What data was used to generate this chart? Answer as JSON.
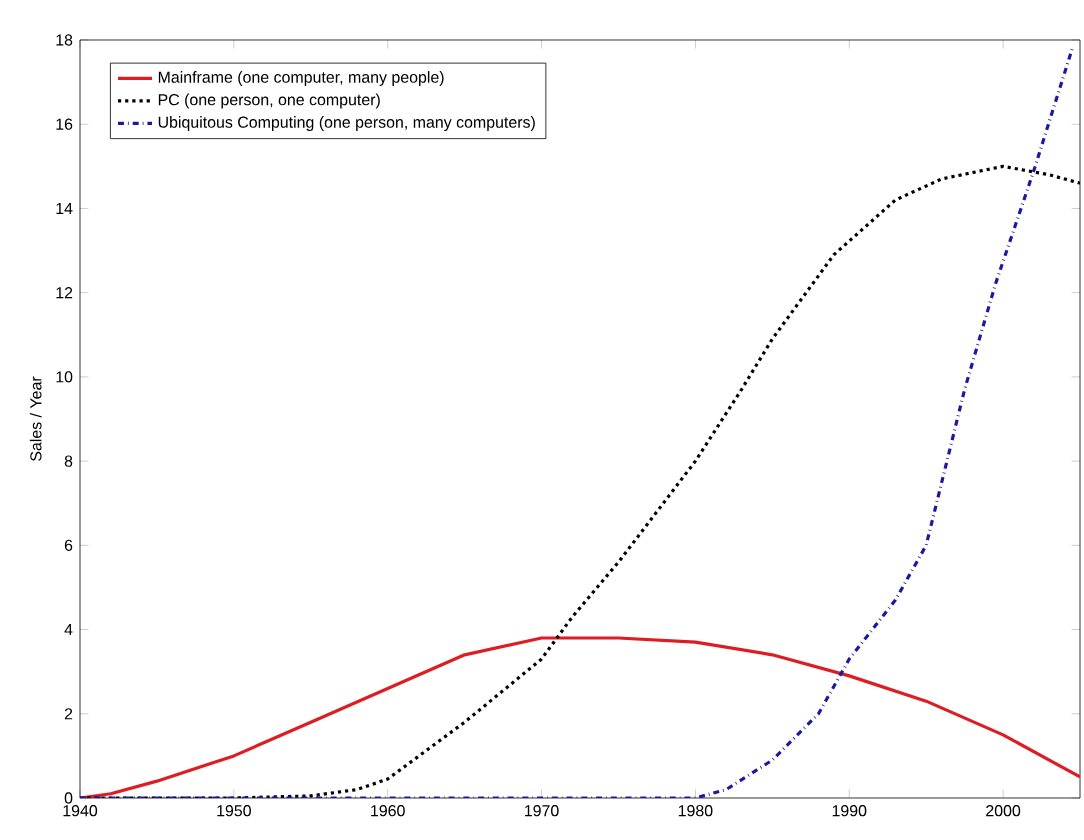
{
  "chart_data": {
    "type": "line",
    "ylabel": "Sales / Year",
    "xlim": [
      1940,
      2005
    ],
    "ylim": [
      0,
      18
    ],
    "xticks": [
      1940,
      1950,
      1960,
      1970,
      1980,
      1990,
      2000
    ],
    "yticks": [
      0,
      2,
      4,
      6,
      8,
      10,
      12,
      14,
      16,
      18
    ],
    "legend": "top left",
    "grid": false,
    "series": [
      {
        "name": "Mainframe (one computer, many people)",
        "color": "#dd1c24",
        "line_style": "solid",
        "x": [
          1940,
          1942,
          1945,
          1950,
          1955,
          1960,
          1965,
          1970,
          1975,
          1980,
          1985,
          1990,
          1995,
          2000,
          2005
        ],
        "values": [
          0,
          0.1,
          0.4,
          1,
          1.8,
          2.6,
          3.4,
          3.8,
          3.8,
          3.7,
          3.4,
          2.9,
          2.3,
          1.5,
          0.5
        ]
      },
      {
        "name": "PC (one person, one computer)",
        "color": "#000000",
        "line_style": "dotted",
        "x": [
          1940,
          1950,
          1955,
          1958,
          1960,
          1965,
          1970,
          1972,
          1975,
          1980,
          1983,
          1985,
          1989,
          1993,
          1996,
          2000,
          2003,
          2005
        ],
        "values": [
          0,
          0,
          0.05,
          0.2,
          0.45,
          1.8,
          3.3,
          4.3,
          5.6,
          8,
          9.7,
          10.9,
          12.9,
          14.2,
          14.7,
          15,
          14.8,
          14.6
        ]
      },
      {
        "name": "Ubiquitous Computing (one person, many computers)",
        "color": "#1a1aa0",
        "line_style": "dashdot",
        "x": [
          1940,
          1950,
          1960,
          1970,
          1980,
          1982,
          1985,
          1988,
          1990,
          1993,
          1995,
          1997.5,
          1999.5,
          2002,
          2004.5
        ],
        "values": [
          0,
          0,
          0,
          0,
          0,
          0.2,
          0.9,
          2,
          3.3,
          4.7,
          6,
          9.7,
          12.2,
          14.9,
          17.8
        ]
      }
    ]
  }
}
